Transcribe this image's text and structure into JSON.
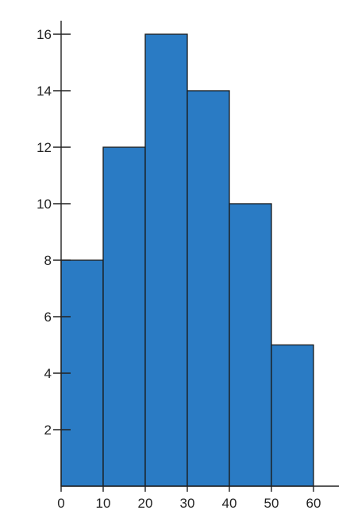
{
  "chart_data": {
    "type": "bar",
    "variant": "histogram",
    "bins": [
      {
        "from": 0,
        "to": 10,
        "value": 8
      },
      {
        "from": 10,
        "to": 20,
        "value": 12
      },
      {
        "from": 20,
        "to": 30,
        "value": 16
      },
      {
        "from": 30,
        "to": 40,
        "value": 14
      },
      {
        "from": 40,
        "to": 50,
        "value": 10
      },
      {
        "from": 50,
        "to": 60,
        "value": 5
      }
    ],
    "xticks": [
      "0",
      "10",
      "20",
      "30",
      "40",
      "50",
      "60"
    ],
    "yticks": [
      "2",
      "4",
      "6",
      "8",
      "10",
      "12",
      "14",
      "16"
    ],
    "xlim": [
      0,
      66
    ],
    "ylim": [
      0,
      16.4
    ],
    "title": "",
    "xlabel": "",
    "ylabel": "",
    "grid": false,
    "legend": "none",
    "colors": {
      "bar_fill": "#2a7bc4",
      "bar_stroke": "#1a1a1a",
      "axis": "#222222",
      "text": "#222222"
    }
  }
}
